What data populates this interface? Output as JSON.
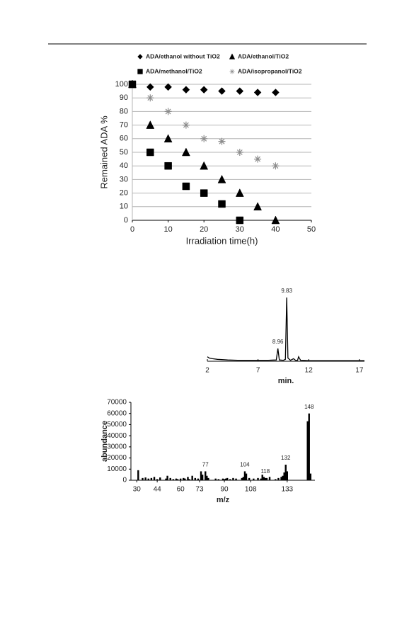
{
  "chart_data": [
    {
      "type": "scatter",
      "xlabel": "Irradiation time(h)",
      "ylabel": "Remained ADA %",
      "xlim": [
        0,
        50
      ],
      "xticks": [
        0,
        10,
        20,
        30,
        40,
        50
      ],
      "ylim": [
        0,
        100
      ],
      "yticks": [
        0,
        10,
        20,
        30,
        40,
        50,
        60,
        70,
        80,
        90,
        100
      ],
      "grid": true,
      "series": [
        {
          "name": "ADA/ethanol without TiO2",
          "marker": "diamond",
          "color": "#000000",
          "x": [
            0,
            5,
            10,
            15,
            20,
            25,
            30,
            35,
            40
          ],
          "values": [
            100,
            98,
            98,
            96,
            96,
            95,
            95,
            94,
            94
          ]
        },
        {
          "name": "ADA/ethanol/TiO2",
          "marker": "triangle",
          "color": "#000000",
          "x": [
            0,
            5,
            10,
            15,
            20,
            25,
            30,
            35,
            40
          ],
          "values": [
            100,
            70,
            60,
            50,
            40,
            30,
            20,
            10,
            0
          ]
        },
        {
          "name": "ADA/methanol/TiO2",
          "marker": "square",
          "color": "#000000",
          "x": [
            0,
            5,
            10,
            15,
            20,
            25,
            30
          ],
          "values": [
            100,
            50,
            40,
            25,
            20,
            12,
            0
          ]
        },
        {
          "name": "ADA/isopropanol/TiO2",
          "marker": "asterisk",
          "color": "#8c8c8c",
          "x": [
            5,
            10,
            15,
            20,
            25,
            30,
            35,
            40
          ],
          "values": [
            90,
            80,
            70,
            60,
            58,
            50,
            45,
            40
          ]
        }
      ]
    },
    {
      "type": "line",
      "xlabel": "min.",
      "xlim": [
        2,
        17.5
      ],
      "xticks": [
        2,
        7,
        12,
        17
      ],
      "color": "#000000",
      "x": [
        2,
        2.2,
        2.5,
        3,
        4,
        5,
        6,
        7,
        8,
        8.8,
        8.96,
        9.1,
        9.5,
        9.7,
        9.83,
        9.95,
        10.2,
        10.5,
        10.7,
        10.9,
        11,
        11.2,
        12,
        14,
        16,
        17.5
      ],
      "values": [
        7,
        5,
        4,
        3,
        2,
        1.5,
        1.5,
        1.5,
        1.5,
        2,
        20,
        2,
        1.5,
        3,
        100,
        5,
        1.5,
        4,
        1.5,
        1.5,
        7,
        1.5,
        1,
        1,
        1,
        1
      ],
      "peak_labels": [
        8.96,
        9.83
      ]
    },
    {
      "type": "bar",
      "xlabel": "m/z",
      "ylabel": "abundance",
      "xlim": [
        26,
        152
      ],
      "xticks": [
        30,
        44,
        60,
        73,
        90,
        108,
        133
      ],
      "ylim": [
        0,
        70000
      ],
      "yticks": [
        0,
        10000,
        20000,
        30000,
        40000,
        50000,
        60000,
        70000
      ],
      "color": "#000000",
      "x": [
        31,
        34,
        36,
        38,
        40,
        42,
        44,
        46,
        50,
        51,
        53,
        55,
        57,
        58,
        60,
        62,
        63,
        65,
        66,
        68,
        70,
        72,
        74,
        75,
        77,
        78,
        79,
        84,
        86,
        89,
        90,
        91,
        92,
        94,
        96,
        98,
        102,
        103,
        104,
        105,
        107,
        110,
        113,
        115,
        116,
        117,
        118,
        119,
        121,
        125,
        127,
        129,
        130,
        131,
        132,
        133,
        147,
        148,
        149
      ],
      "values": [
        9000,
        2000,
        2500,
        1500,
        2000,
        3000,
        1000,
        2500,
        1500,
        4000,
        2000,
        1000,
        1500,
        1000,
        1500,
        2000,
        1500,
        3000,
        1000,
        4000,
        2000,
        1500,
        8000,
        5000,
        8000,
        4000,
        2000,
        1500,
        1000,
        1500,
        1000,
        1500,
        2000,
        1000,
        2000,
        1500,
        2000,
        3000,
        8000,
        6000,
        2000,
        1500,
        2000,
        1500,
        5000,
        3000,
        2000,
        2000,
        3000,
        1000,
        2000,
        3000,
        4000,
        7000,
        14000,
        8000,
        53000,
        60000,
        6000
      ],
      "peak_labels": [
        77,
        104,
        118,
        132,
        148
      ]
    }
  ]
}
